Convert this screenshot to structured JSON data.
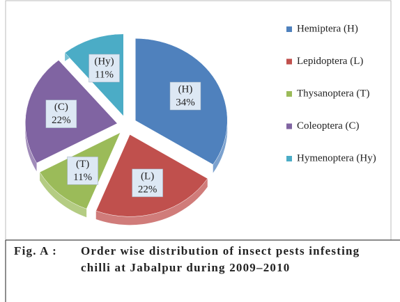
{
  "chart_data": {
    "type": "pie",
    "categories": [
      "Hemiptera (H)",
      "Lepidoptera (L)",
      "Thysanoptera (T)",
      "Coleoptera (C)",
      "Hymenoptera (Hy)"
    ],
    "values": [
      34,
      22,
      11,
      22,
      11
    ],
    "slice_labels": [
      "(H)",
      "(L)",
      "(T)",
      "(C)",
      "(Hy)"
    ],
    "value_labels": [
      "34%",
      "22%",
      "11%",
      "22%",
      "11%"
    ],
    "colors": [
      "#4f81bd",
      "#c0504d",
      "#9bbb59",
      "#8064a2",
      "#4bacc6"
    ],
    "legend": "right",
    "caption_label": "Fig. A :",
    "caption": "Order wise distribution of insect pests infesting chilli at Jabalpur during 2009–2010"
  }
}
